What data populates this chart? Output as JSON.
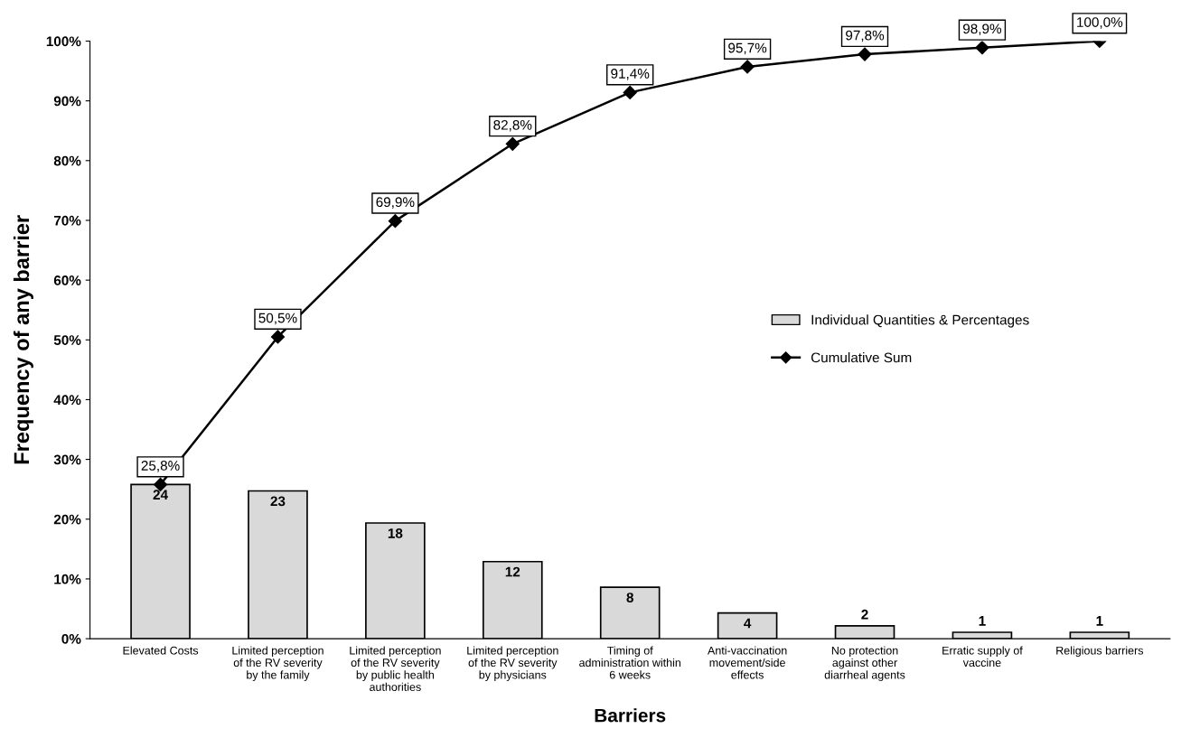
{
  "chart_data": {
    "type": "bar",
    "xlabel": "Barriers",
    "ylabel": "Frequency of any barrier",
    "categories": [
      "Elevated Costs",
      "Limited perception\nof the RV severity\nby the family",
      "Limited perception\nof the RV severity\nby public health\nauthorities",
      "Limited perception\nof the RV severity\nby physicians",
      "Timing of\nadministration within\n6 weeks",
      "Anti-vaccination\nmovement/side\neffects",
      "No protection\nagainst other\ndiarrheal agents",
      "Erratic supply of\nvaccine",
      "Religious barriers"
    ],
    "series": [
      {
        "name": "Individual Quantities & Percentages",
        "axis": "y2",
        "color": "#d9d9d9",
        "values": [
          24,
          23,
          18,
          12,
          8,
          4,
          2,
          1,
          1
        ],
        "value_labels": [
          "24",
          "23",
          "18",
          "12",
          "8",
          "4",
          "2",
          "1",
          "1"
        ]
      },
      {
        "name": "Cumulative Sum",
        "type": "line",
        "color": "#000000",
        "marker": "diamond",
        "values": [
          25.8,
          50.5,
          69.9,
          82.8,
          91.4,
          95.7,
          97.8,
          98.9,
          100.0
        ],
        "value_labels": [
          "25,8%",
          "50,5%",
          "69,9%",
          "82,8%",
          "91,4%",
          "95,7%",
          "97,8%",
          "98,9%",
          "100,0%"
        ]
      }
    ],
    "ylim": [
      0,
      100
    ],
    "y2lim": [
      0,
      93
    ],
    "yticks": [
      {
        "value": 0,
        "label": "0%"
      },
      {
        "value": 10,
        "label": "10%"
      },
      {
        "value": 20,
        "label": "20%"
      },
      {
        "value": 30,
        "label": "30%"
      },
      {
        "value": 40,
        "label": "40%"
      },
      {
        "value": 50,
        "label": "50%"
      },
      {
        "value": 60,
        "label": "60%"
      },
      {
        "value": 70,
        "label": "70%"
      },
      {
        "value": 80,
        "label": "80%"
      },
      {
        "value": 90,
        "label": "90%"
      },
      {
        "value": 100,
        "label": "100%"
      }
    ],
    "grid": false,
    "legend": "right"
  }
}
